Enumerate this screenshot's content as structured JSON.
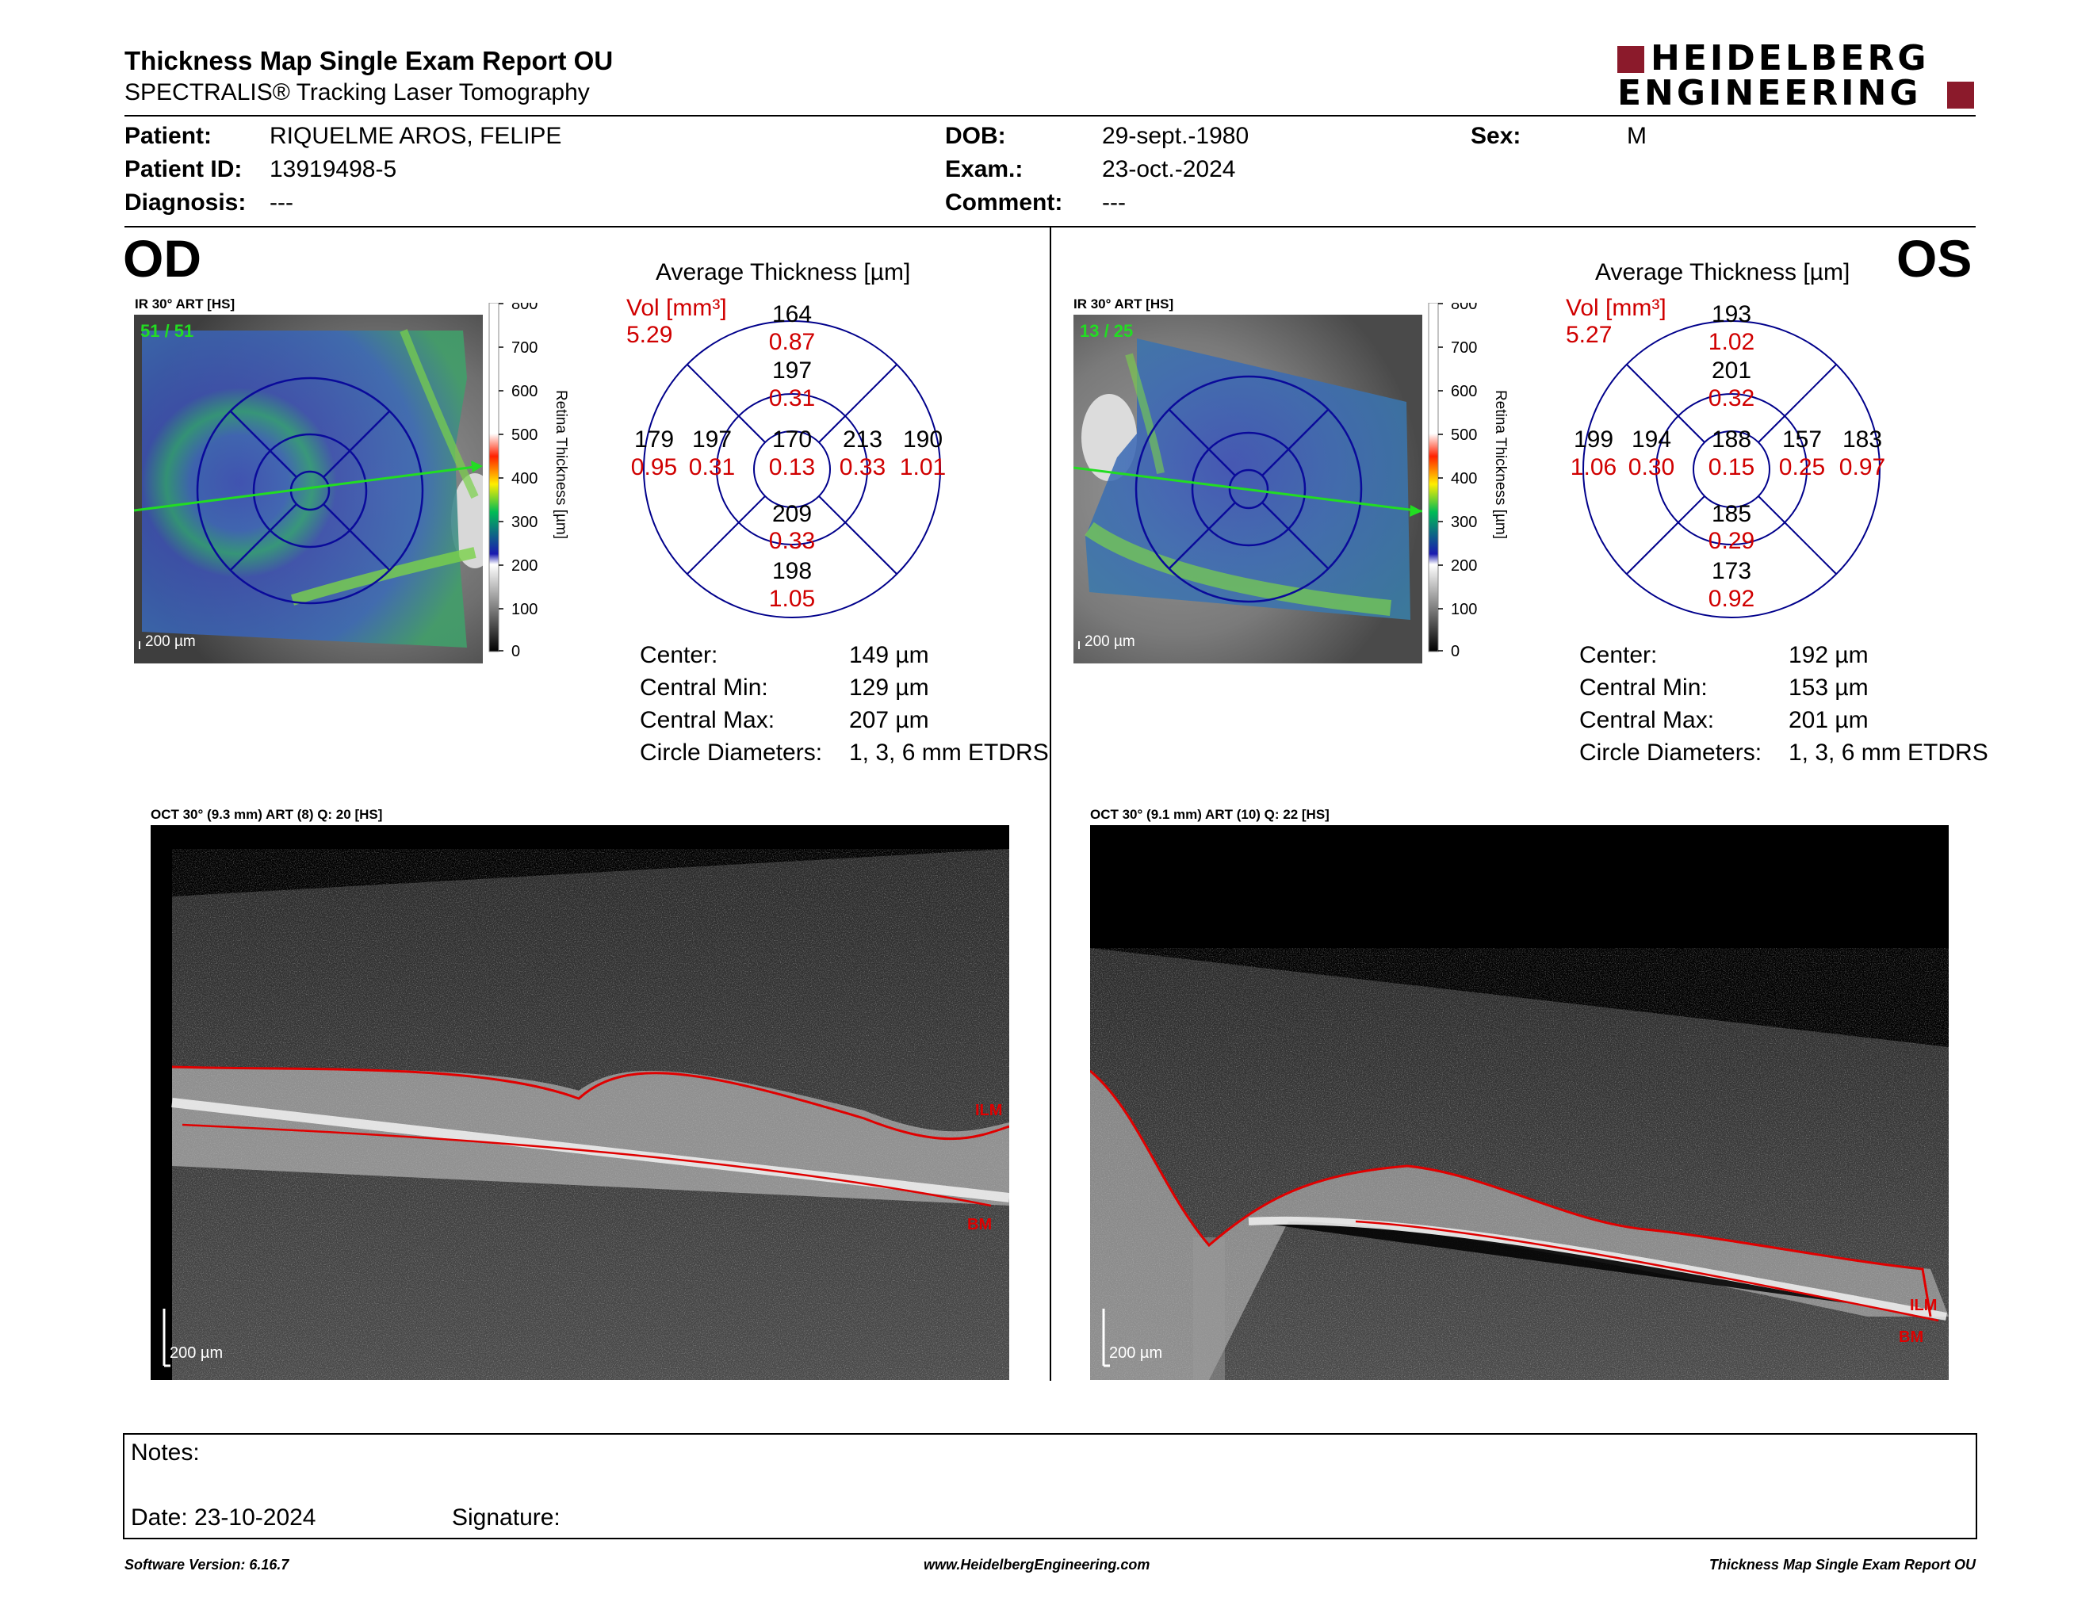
{
  "header": {
    "title": "Thickness Map Single Exam Report OU",
    "subtitle": "SPECTRALIS® Tracking Laser Tomography",
    "logo_line1": "HEIDELBERG",
    "logo_line2": "ENGINEERING",
    "logo_color": "#8b1a2b"
  },
  "patient": {
    "patient_label": "Patient:",
    "patient_value": "RIQUELME AROS, FELIPE",
    "id_label": "Patient ID:",
    "id_value": "13919498-5",
    "diagnosis_label": "Diagnosis:",
    "diagnosis_value": "---",
    "dob_label": "DOB:",
    "dob_value": "29-sept.-1980",
    "exam_label": "Exam.:",
    "exam_value": "23-oct.-2024",
    "comment_label": "Comment:",
    "comment_value": "---",
    "sex_label": "Sex:",
    "sex_value": "M"
  },
  "od": {
    "eye_label": "OD",
    "ir_label": "IR 30° ART [HS]",
    "frame_count": "51 / 51",
    "scale_bar": "200 µm",
    "colorbar_ticks": [
      "800",
      "700",
      "600",
      "500",
      "400",
      "300",
      "200",
      "100",
      "0"
    ],
    "colorbar_title": "Retina  Thickness [µm]",
    "avg_title": "Average Thickness [µm]",
    "vol_label": "Vol [mm³]",
    "vol_value": "5.29",
    "grid": {
      "outer_top": "164",
      "outer_top_vol": "0.87",
      "inner_top": "197",
      "inner_top_vol": "0.31",
      "outer_left": "179",
      "outer_left_vol": "0.95",
      "inner_left": "197",
      "inner_left_vol": "0.31",
      "center": "170",
      "center_vol": "0.13",
      "inner_right": "213",
      "inner_right_vol": "0.33",
      "outer_right": "190",
      "outer_right_vol": "1.01",
      "inner_bottom": "209",
      "inner_bottom_vol": "0.33",
      "outer_bottom": "198",
      "outer_bottom_vol": "1.05"
    },
    "stats": {
      "center_label": "Center:",
      "center_value": "149 µm",
      "min_label": "Central Min:",
      "min_value": "129 µm",
      "max_label": "Central Max:",
      "max_value": "207 µm",
      "diam_label": "Circle Diameters:",
      "diam_value": "1, 3, 6 mm ETDRS"
    },
    "oct_label": "OCT 30° (9.3 mm) ART (8) Q: 20 [HS]",
    "oct_scale": "200 µm",
    "ilm_label": "ILM",
    "bm_label": "BM"
  },
  "os": {
    "eye_label": "OS",
    "ir_label": "IR 30° ART [HS]",
    "frame_count": "13 / 25",
    "scale_bar": "200 µm",
    "colorbar_ticks": [
      "800",
      "700",
      "600",
      "500",
      "400",
      "300",
      "200",
      "100",
      "0"
    ],
    "colorbar_title": "Retina  Thickness [µm]",
    "avg_title": "Average Thickness [µm]",
    "vol_label": "Vol [mm³]",
    "vol_value": "5.27",
    "grid": {
      "outer_top": "193",
      "outer_top_vol": "1.02",
      "inner_top": "201",
      "inner_top_vol": "0.32",
      "outer_left": "199",
      "outer_left_vol": "1.06",
      "inner_left": "194",
      "inner_left_vol": "0.30",
      "center": "188",
      "center_vol": "0.15",
      "inner_right": "157",
      "inner_right_vol": "0.25",
      "outer_right": "183",
      "outer_right_vol": "0.97",
      "inner_bottom": "185",
      "inner_bottom_vol": "0.29",
      "outer_bottom": "173",
      "outer_bottom_vol": "0.92"
    },
    "stats": {
      "center_label": "Center:",
      "center_value": "192 µm",
      "min_label": "Central Min:",
      "min_value": "153 µm",
      "max_label": "Central Max:",
      "max_value": "201 µm",
      "diam_label": "Circle Diameters:",
      "diam_value": "1, 3, 6 mm ETDRS"
    },
    "oct_label": "OCT 30° (9.1 mm) ART (10) Q: 22 [HS]",
    "oct_scale": "200 µm",
    "ilm_label": "ILM",
    "bm_label": "BM"
  },
  "notes": {
    "notes_label": "Notes:",
    "date_label": "Date: 23-10-2024",
    "signature_label": "Signature:"
  },
  "footer": {
    "software": "Software Version: 6.16.7",
    "website": "www.HeidelbergEngineering.com",
    "report_name": "Thickness Map Single Exam Report OU"
  },
  "colors": {
    "vol_red": "#d00000",
    "grid_blue": "#00008b",
    "segmentation_red": "#e00000",
    "scan_line_green": "#22dd22"
  }
}
